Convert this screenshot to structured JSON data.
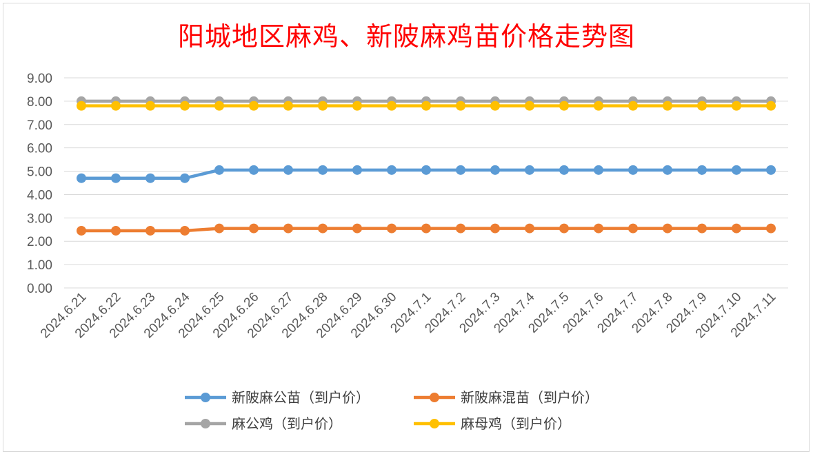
{
  "chart_data": {
    "type": "line",
    "title": "阳城地区麻鸡、新陂麻鸡苗价格走势图",
    "xlabel": "",
    "ylabel": "",
    "ylim": [
      0,
      9
    ],
    "yticks": [
      "0.00",
      "1.00",
      "2.00",
      "3.00",
      "4.00",
      "5.00",
      "6.00",
      "7.00",
      "8.00",
      "9.00"
    ],
    "categories": [
      "2024.6.21",
      "2024.6.22",
      "2024.6.23",
      "2024.6.24",
      "2024.6.25",
      "2024.6.26",
      "2024.6.27",
      "2024.6.28",
      "2024.6.29",
      "2024.6.30",
      "2024.7.1",
      "2024.7.2",
      "2024.7.3",
      "2024.7.4",
      "2024.7.5",
      "2024.7.6",
      "2024.7.7",
      "2024.7.8",
      "2024.7.9",
      "2024.7.10",
      "2024.7.11"
    ],
    "series": [
      {
        "name": "新陂麻公苗（到户价）",
        "color": "#5b9bd5",
        "values": [
          4.7,
          4.7,
          4.7,
          4.7,
          5.05,
          5.05,
          5.05,
          5.05,
          5.05,
          5.05,
          5.05,
          5.05,
          5.05,
          5.05,
          5.05,
          5.05,
          5.05,
          5.05,
          5.05,
          5.05,
          5.05
        ]
      },
      {
        "name": "新陂麻混苗（到户价）",
        "color": "#ed7d31",
        "values": [
          2.45,
          2.45,
          2.45,
          2.45,
          2.55,
          2.55,
          2.55,
          2.55,
          2.55,
          2.55,
          2.55,
          2.55,
          2.55,
          2.55,
          2.55,
          2.55,
          2.55,
          2.55,
          2.55,
          2.55,
          2.55
        ]
      },
      {
        "name": "麻公鸡（到户价）",
        "color": "#a5a5a5",
        "values": [
          8.0,
          8.0,
          8.0,
          8.0,
          8.0,
          8.0,
          8.0,
          8.0,
          8.0,
          8.0,
          8.0,
          8.0,
          8.0,
          8.0,
          8.0,
          8.0,
          8.0,
          8.0,
          8.0,
          8.0,
          8.0
        ]
      },
      {
        "name": "麻母鸡（到户价）",
        "color": "#ffc000",
        "values": [
          7.8,
          7.8,
          7.8,
          7.8,
          7.8,
          7.8,
          7.8,
          7.8,
          7.8,
          7.8,
          7.8,
          7.8,
          7.8,
          7.8,
          7.8,
          7.8,
          7.8,
          7.8,
          7.8,
          7.8,
          7.8
        ]
      }
    ],
    "grid": true,
    "legend_position": "bottom"
  }
}
